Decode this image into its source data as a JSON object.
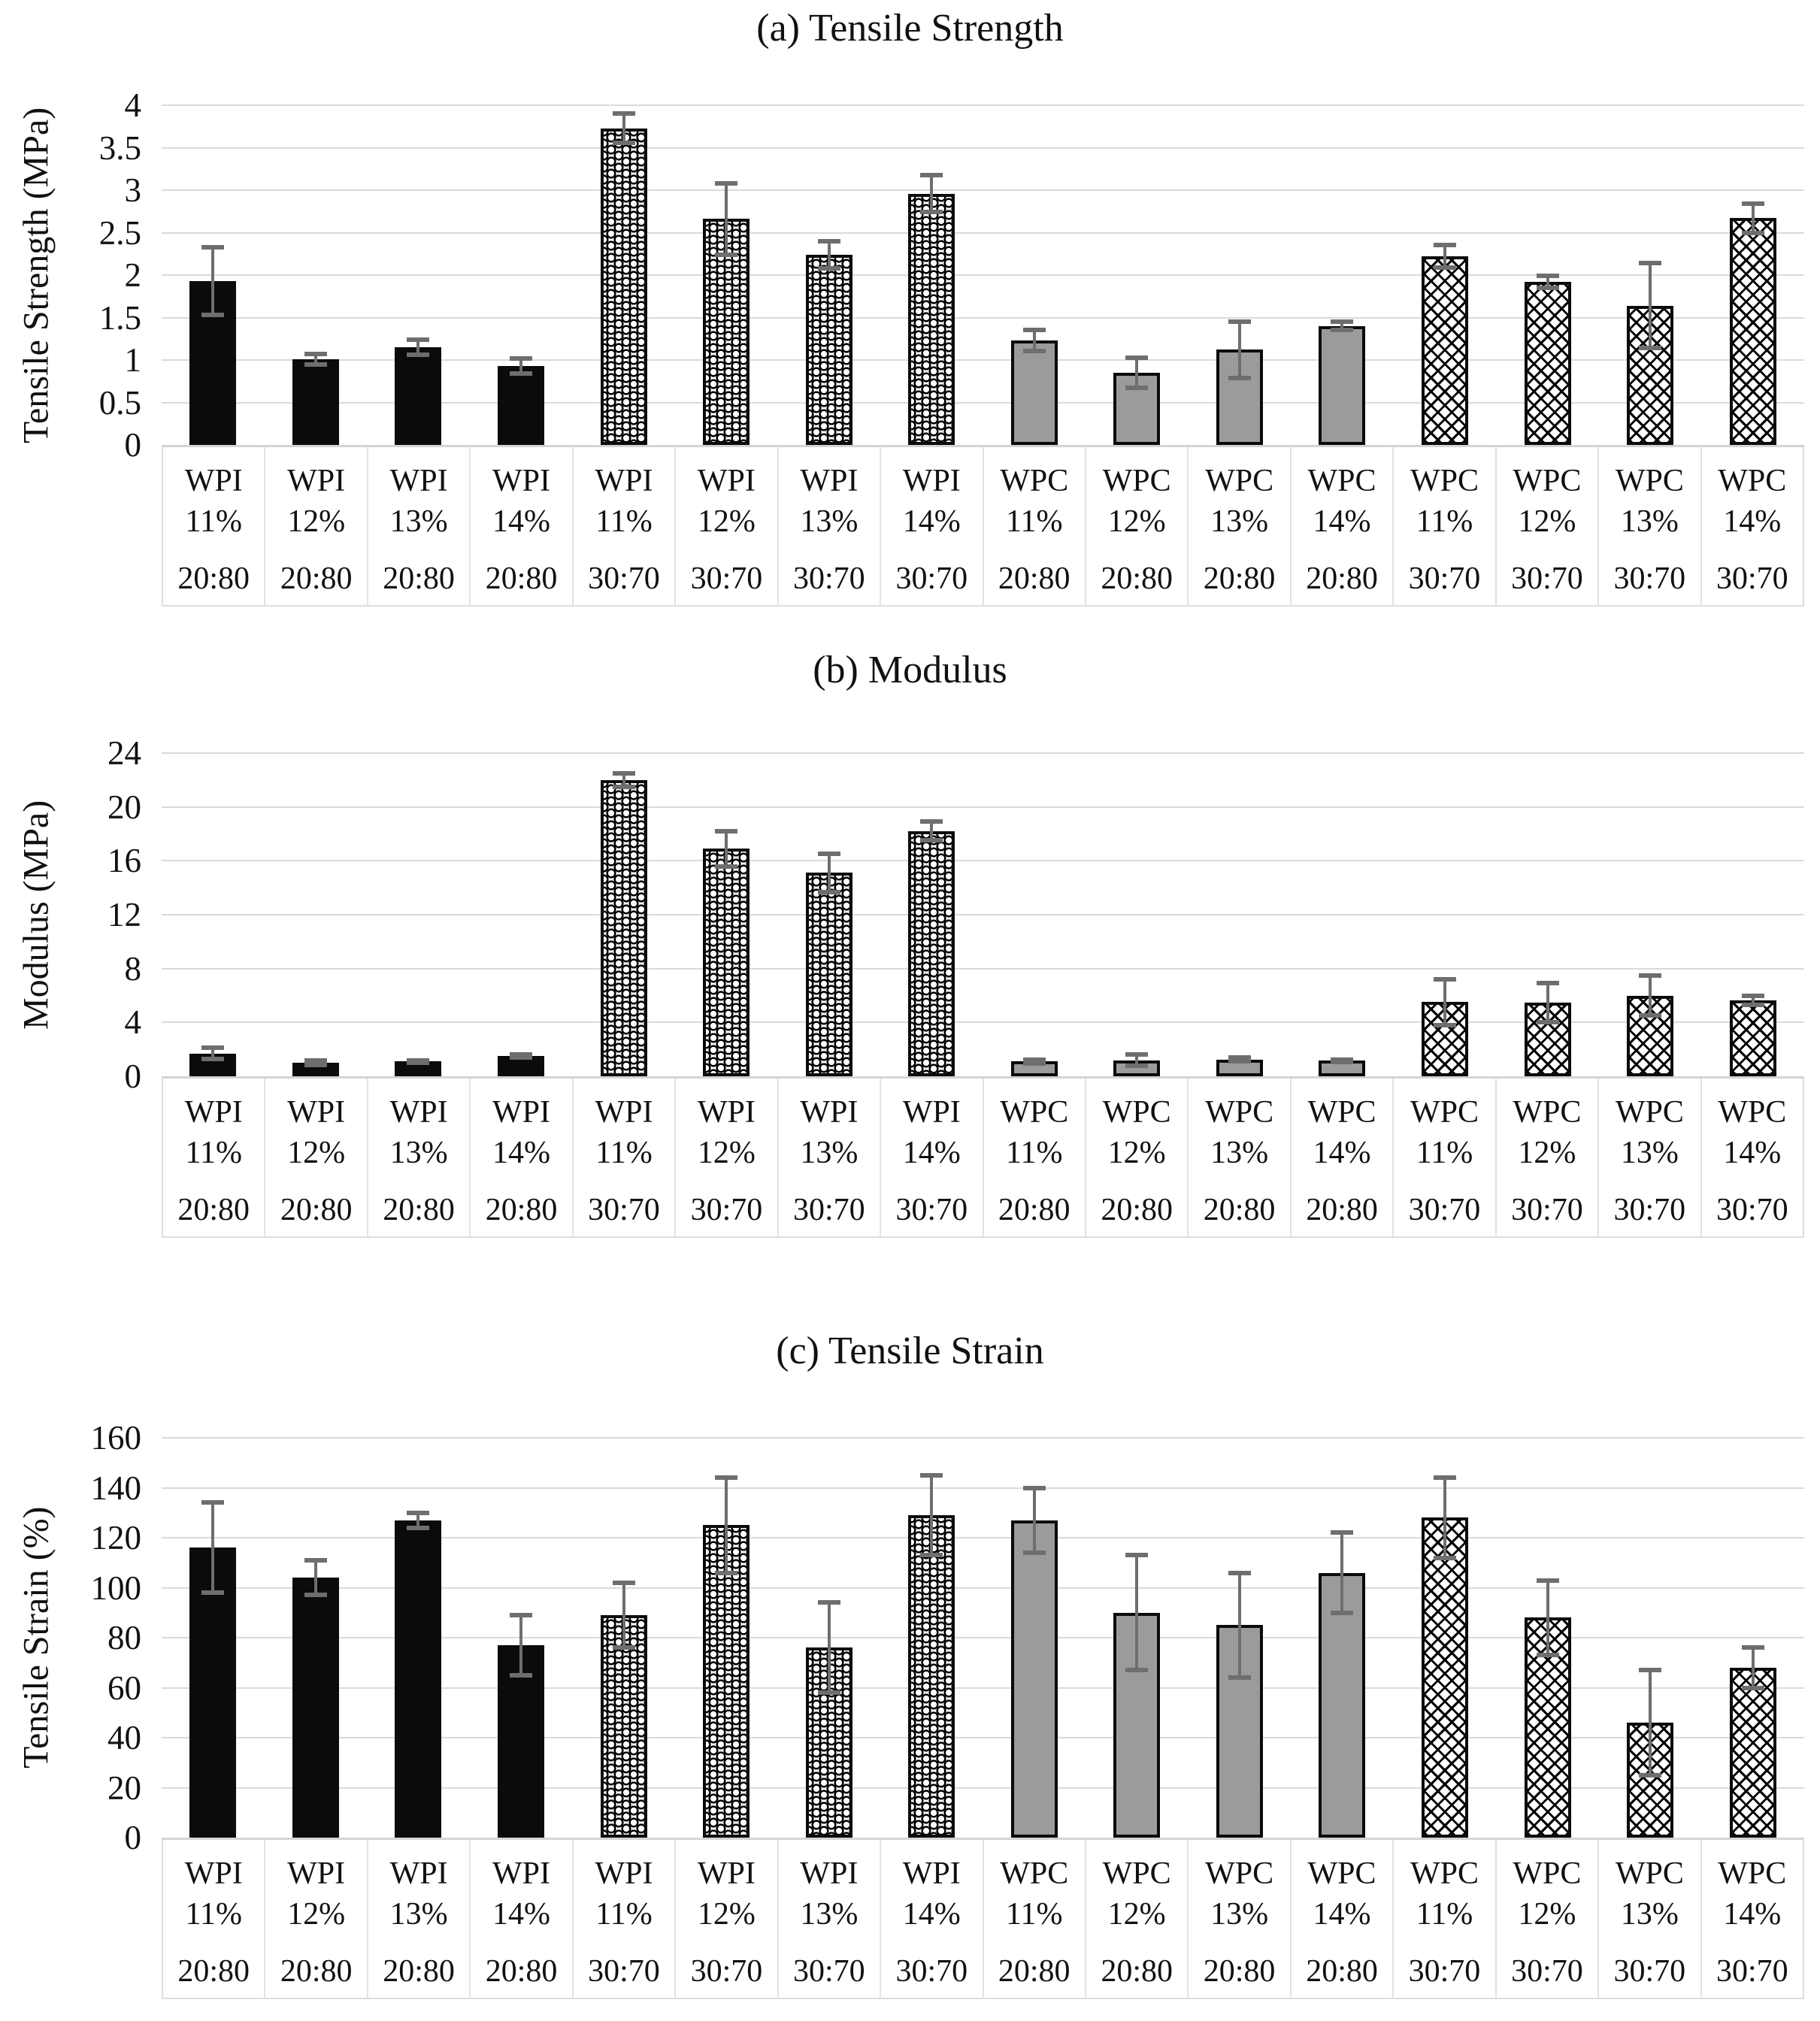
{
  "figure": {
    "description_titles": [
      "(a) Tensile Strength",
      "(b) Modulus",
      "(c) Tensile Strain"
    ]
  },
  "colors": {
    "solid_bar": "#0b0b0b",
    "gray_bar": "#9b9b9b",
    "pattern_ink": "#000000",
    "gridline": "#dadada",
    "error_bar": "#6e6e6e",
    "text": "#111111"
  },
  "chart_data": [
    {
      "type": "bar",
      "title": "(a) Tensile Strength",
      "ylabel": "Tensile Strength (MPa)",
      "xlabel": "",
      "ylim": [
        0,
        4
      ],
      "grid": true,
      "legend": "none",
      "yticks": [
        "4",
        "3.5",
        "3",
        "2.5",
        "2",
        "1.5",
        "1",
        "0.5",
        "0"
      ],
      "categories": [
        {
          "material": "WPI",
          "concentration": "11%",
          "ratio": "20:80"
        },
        {
          "material": "WPI",
          "concentration": "12%",
          "ratio": "20:80"
        },
        {
          "material": "WPI",
          "concentration": "13%",
          "ratio": "20:80"
        },
        {
          "material": "WPI",
          "concentration": "14%",
          "ratio": "20:80"
        },
        {
          "material": "WPI",
          "concentration": "11%",
          "ratio": "30:70"
        },
        {
          "material": "WPI",
          "concentration": "12%",
          "ratio": "30:70"
        },
        {
          "material": "WPI",
          "concentration": "13%",
          "ratio": "30:70"
        },
        {
          "material": "WPI",
          "concentration": "14%",
          "ratio": "30:70"
        },
        {
          "material": "WPC",
          "concentration": "11%",
          "ratio": "20:80"
        },
        {
          "material": "WPC",
          "concentration": "12%",
          "ratio": "20:80"
        },
        {
          "material": "WPC",
          "concentration": "13%",
          "ratio": "20:80"
        },
        {
          "material": "WPC",
          "concentration": "14%",
          "ratio": "20:80"
        },
        {
          "material": "WPC",
          "concentration": "11%",
          "ratio": "30:70"
        },
        {
          "material": "WPC",
          "concentration": "12%",
          "ratio": "30:70"
        },
        {
          "material": "WPC",
          "concentration": "13%",
          "ratio": "30:70"
        },
        {
          "material": "WPC",
          "concentration": "14%",
          "ratio": "30:70"
        }
      ],
      "values": [
        1.93,
        1.01,
        1.15,
        0.93,
        3.73,
        2.66,
        2.24,
        2.96,
        1.23,
        0.85,
        1.12,
        1.4,
        2.22,
        1.92,
        1.64,
        2.67
      ],
      "errors": [
        0.4,
        0.06,
        0.09,
        0.09,
        0.17,
        0.42,
        0.16,
        0.22,
        0.12,
        0.18,
        0.33,
        0.05,
        0.13,
        0.07,
        0.5,
        0.17
      ],
      "patterns": [
        "solid",
        "solid",
        "solid",
        "solid",
        "wave",
        "wave",
        "wave",
        "wave",
        "gray",
        "gray",
        "gray",
        "gray",
        "cross",
        "cross",
        "cross",
        "cross"
      ]
    },
    {
      "type": "bar",
      "title": "(b) Modulus",
      "ylabel": "Modulus (MPa)",
      "xlabel": "",
      "ylim": [
        0,
        24
      ],
      "grid": true,
      "legend": "none",
      "yticks": [
        "24",
        "20",
        "16",
        "12",
        "8",
        "4",
        "0"
      ],
      "categories": [
        {
          "material": "WPI",
          "concentration": "11%",
          "ratio": "20:80"
        },
        {
          "material": "WPI",
          "concentration": "12%",
          "ratio": "20:80"
        },
        {
          "material": "WPI",
          "concentration": "13%",
          "ratio": "20:80"
        },
        {
          "material": "WPI",
          "concentration": "14%",
          "ratio": "20:80"
        },
        {
          "material": "WPI",
          "concentration": "11%",
          "ratio": "30:70"
        },
        {
          "material": "WPI",
          "concentration": "12%",
          "ratio": "30:70"
        },
        {
          "material": "WPI",
          "concentration": "13%",
          "ratio": "30:70"
        },
        {
          "material": "WPI",
          "concentration": "14%",
          "ratio": "30:70"
        },
        {
          "material": "WPC",
          "concentration": "11%",
          "ratio": "20:80"
        },
        {
          "material": "WPC",
          "concentration": "12%",
          "ratio": "20:80"
        },
        {
          "material": "WPC",
          "concentration": "13%",
          "ratio": "20:80"
        },
        {
          "material": "WPC",
          "concentration": "14%",
          "ratio": "20:80"
        },
        {
          "material": "WPC",
          "concentration": "11%",
          "ratio": "30:70"
        },
        {
          "material": "WPC",
          "concentration": "12%",
          "ratio": "30:70"
        },
        {
          "material": "WPC",
          "concentration": "13%",
          "ratio": "30:70"
        },
        {
          "material": "WPC",
          "concentration": "14%",
          "ratio": "30:70"
        }
      ],
      "values": [
        1.7,
        1.0,
        1.1,
        1.5,
        22.0,
        16.9,
        15.1,
        18.2,
        1.1,
        1.2,
        1.25,
        1.15,
        5.5,
        5.45,
        6.0,
        5.65
      ],
      "errors": [
        0.4,
        0.15,
        0.1,
        0.1,
        0.5,
        1.3,
        1.4,
        0.7,
        0.15,
        0.4,
        0.15,
        0.1,
        1.7,
        1.45,
        1.5,
        0.35
      ],
      "patterns": [
        "solid",
        "solid",
        "solid",
        "solid",
        "wave",
        "wave",
        "wave",
        "wave",
        "gray",
        "gray",
        "gray",
        "gray",
        "cross",
        "cross",
        "cross",
        "cross"
      ]
    },
    {
      "type": "bar",
      "title": "(c) Tensile Strain",
      "ylabel": "Tensile Strain (%)",
      "xlabel": "",
      "ylim": [
        0,
        160
      ],
      "grid": true,
      "legend": "none",
      "yticks": [
        "160",
        "140",
        "120",
        "100",
        "80",
        "60",
        "40",
        "20",
        "0"
      ],
      "categories": [
        {
          "material": "WPI",
          "concentration": "11%",
          "ratio": "20:80"
        },
        {
          "material": "WPI",
          "concentration": "12%",
          "ratio": "20:80"
        },
        {
          "material": "WPI",
          "concentration": "13%",
          "ratio": "20:80"
        },
        {
          "material": "WPI",
          "concentration": "14%",
          "ratio": "20:80"
        },
        {
          "material": "WPI",
          "concentration": "11%",
          "ratio": "30:70"
        },
        {
          "material": "WPI",
          "concentration": "12%",
          "ratio": "30:70"
        },
        {
          "material": "WPI",
          "concentration": "13%",
          "ratio": "30:70"
        },
        {
          "material": "WPI",
          "concentration": "14%",
          "ratio": "30:70"
        },
        {
          "material": "WPC",
          "concentration": "11%",
          "ratio": "20:80"
        },
        {
          "material": "WPC",
          "concentration": "12%",
          "ratio": "20:80"
        },
        {
          "material": "WPC",
          "concentration": "13%",
          "ratio": "20:80"
        },
        {
          "material": "WPC",
          "concentration": "14%",
          "ratio": "20:80"
        },
        {
          "material": "WPC",
          "concentration": "11%",
          "ratio": "30:70"
        },
        {
          "material": "WPC",
          "concentration": "12%",
          "ratio": "30:70"
        },
        {
          "material": "WPC",
          "concentration": "13%",
          "ratio": "30:70"
        },
        {
          "material": "WPC",
          "concentration": "14%",
          "ratio": "30:70"
        }
      ],
      "values": [
        116,
        104,
        127,
        77,
        89,
        125,
        76,
        129,
        127,
        90,
        85,
        106,
        128,
        88,
        46,
        68
      ],
      "errors": [
        18,
        7,
        3,
        12,
        13,
        19,
        18,
        16,
        13,
        23,
        21,
        16,
        16,
        15,
        21,
        8
      ],
      "patterns": [
        "solid",
        "solid",
        "solid",
        "solid",
        "wave",
        "wave",
        "wave",
        "wave",
        "gray",
        "gray",
        "gray",
        "gray",
        "cross",
        "cross",
        "cross",
        "cross"
      ]
    }
  ]
}
